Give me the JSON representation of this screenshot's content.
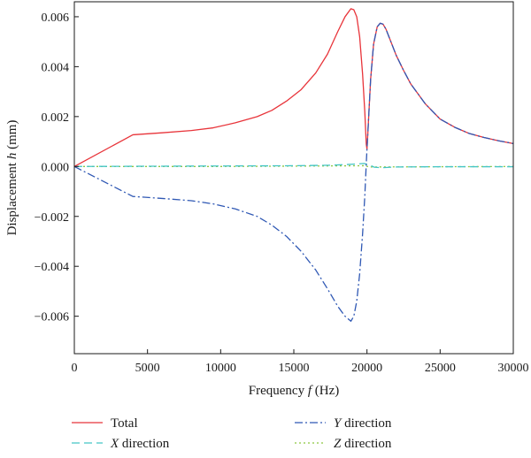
{
  "chart_data": {
    "type": "line",
    "xlabel": {
      "prefix": "Frequency ",
      "var": "f",
      "suffix": " (Hz)"
    },
    "ylabel": {
      "prefix": "Displacement ",
      "var": "h",
      "suffix": " (mm)"
    },
    "xlim": [
      0,
      30000
    ],
    "ylim": [
      -0.0075,
      0.0066
    ],
    "x_ticks": [
      0,
      5000,
      10000,
      15000,
      20000,
      25000,
      30000
    ],
    "x_tick_labels": [
      "0",
      "5000",
      "10000",
      "15000",
      "20000",
      "25000",
      "30000"
    ],
    "y_ticks": [
      -0.006,
      -0.004,
      -0.002,
      0.0,
      0.002,
      0.004,
      0.006
    ],
    "y_tick_labels": [
      "−0.006",
      "−0.004",
      "−0.002",
      "0.000",
      "0.002",
      "0.004",
      "0.006"
    ],
    "grid": false,
    "legend_position": "bottom",
    "series": [
      {
        "name": "Total",
        "legend_var": "",
        "legend_text": "Total",
        "color": "#e8343a",
        "dash": "solid",
        "points": [
          [
            0,
            0
          ],
          [
            4000,
            0.00127
          ],
          [
            6000,
            0.00135
          ],
          [
            8000,
            0.00144
          ],
          [
            9500,
            0.00155
          ],
          [
            11000,
            0.00175
          ],
          [
            12500,
            0.002
          ],
          [
            13500,
            0.00225
          ],
          [
            14500,
            0.00262
          ],
          [
            15500,
            0.00308
          ],
          [
            16500,
            0.00375
          ],
          [
            17300,
            0.0045
          ],
          [
            18000,
            0.0054
          ],
          [
            18500,
            0.006
          ],
          [
            18900,
            0.00632
          ],
          [
            19100,
            0.00628
          ],
          [
            19300,
            0.006
          ],
          [
            19500,
            0.0052
          ],
          [
            19700,
            0.0037
          ],
          [
            19850,
            0.0022
          ],
          [
            19950,
            0.0009
          ],
          [
            20000,
            0.0007
          ],
          [
            20100,
            0.0018
          ],
          [
            20250,
            0.0035
          ],
          [
            20450,
            0.0049
          ],
          [
            20700,
            0.0056
          ],
          [
            20900,
            0.00574
          ],
          [
            21100,
            0.0057
          ],
          [
            21300,
            0.0055
          ],
          [
            21600,
            0.00505
          ],
          [
            22000,
            0.00445
          ],
          [
            22500,
            0.00385
          ],
          [
            23000,
            0.0033
          ],
          [
            24000,
            0.0025
          ],
          [
            25000,
            0.0019
          ],
          [
            26000,
            0.00157
          ],
          [
            27000,
            0.00132
          ],
          [
            28000,
            0.00116
          ],
          [
            29000,
            0.00103
          ],
          [
            30000,
            0.00092
          ]
        ]
      },
      {
        "name": "X direction",
        "legend_var": "X",
        "legend_text": " direction",
        "color": "#43c5c5",
        "dash": "dashed",
        "points": [
          [
            0,
            0
          ],
          [
            5000,
            1e-05
          ],
          [
            10000,
            2e-05
          ],
          [
            15000,
            3e-05
          ],
          [
            17500,
            5e-05
          ],
          [
            19000,
            9e-05
          ],
          [
            19800,
            0.00012
          ],
          [
            20100,
            8e-05
          ],
          [
            20500,
            -3e-05
          ],
          [
            21000,
            -5e-05
          ],
          [
            22000,
            -2e-05
          ],
          [
            25000,
            -1e-05
          ],
          [
            30000,
            -1e-05
          ]
        ]
      },
      {
        "name": "Y direction",
        "legend_var": "Y",
        "legend_text": " direction",
        "color": "#2f58b4",
        "dash": "dashdot",
        "points": [
          [
            0,
            0
          ],
          [
            4000,
            -0.0012
          ],
          [
            6000,
            -0.00128
          ],
          [
            8000,
            -0.00137
          ],
          [
            9500,
            -0.0015
          ],
          [
            11000,
            -0.0017
          ],
          [
            12500,
            -0.002
          ],
          [
            13500,
            -0.00235
          ],
          [
            14500,
            -0.0028
          ],
          [
            15500,
            -0.0034
          ],
          [
            16500,
            -0.00415
          ],
          [
            17300,
            -0.0049
          ],
          [
            18000,
            -0.0056
          ],
          [
            18500,
            -0.006
          ],
          [
            18900,
            -0.0062
          ],
          [
            19100,
            -0.006
          ],
          [
            19300,
            -0.0054
          ],
          [
            19500,
            -0.0043
          ],
          [
            19700,
            -0.0027
          ],
          [
            19850,
            -0.0012
          ],
          [
            19950,
            0.0001
          ],
          [
            20000,
            0.0007
          ],
          [
            20100,
            0.0018
          ],
          [
            20250,
            0.0035
          ],
          [
            20450,
            0.0049
          ],
          [
            20700,
            0.0056
          ],
          [
            20900,
            0.00574
          ],
          [
            21100,
            0.0057
          ],
          [
            21300,
            0.0055
          ],
          [
            21600,
            0.00505
          ],
          [
            22000,
            0.00445
          ],
          [
            22500,
            0.00385
          ],
          [
            23000,
            0.0033
          ],
          [
            24000,
            0.0025
          ],
          [
            25000,
            0.0019
          ],
          [
            26000,
            0.00157
          ],
          [
            27000,
            0.00132
          ],
          [
            28000,
            0.00116
          ],
          [
            29000,
            0.00103
          ],
          [
            30000,
            0.00092
          ]
        ]
      },
      {
        "name": "Z direction",
        "legend_var": "Z",
        "legend_text": " direction",
        "color": "#8cc63f",
        "dash": "dotted",
        "points": [
          [
            0,
            0
          ],
          [
            10000,
            0
          ],
          [
            19800,
            3e-05
          ],
          [
            20200,
            -2e-05
          ],
          [
            30000,
            0
          ]
        ]
      }
    ]
  }
}
